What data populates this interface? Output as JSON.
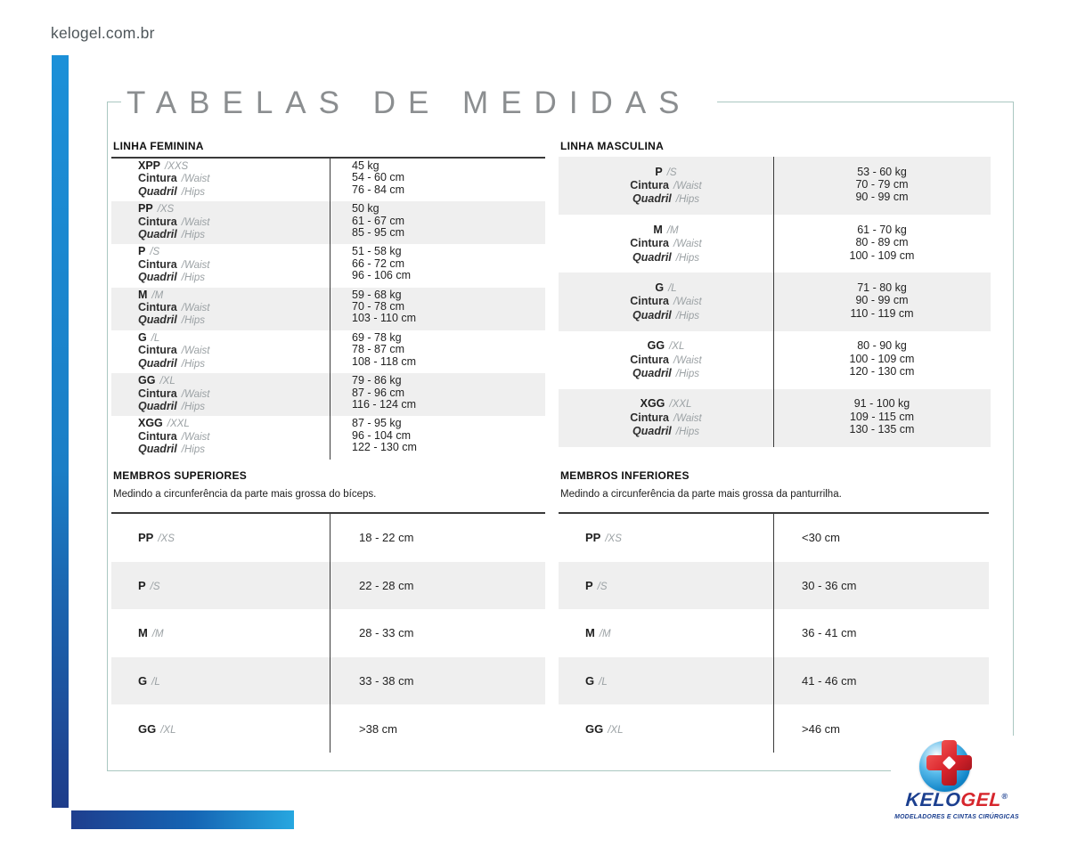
{
  "header": {
    "site_url": "kelogel.com.br"
  },
  "page_title": "TABELAS DE MEDIDAS",
  "labels": {
    "waist": "Cintura",
    "waist_alt": "/Waist",
    "hips": "Quadril",
    "hips_alt": "/Hips"
  },
  "linha_feminina": {
    "title": "LINHA FEMININA",
    "rows": [
      {
        "size": "XPP",
        "size_alt": "/XXS",
        "weight": "45 kg",
        "waist": "54 - 60 cm",
        "hips": "76 - 84 cm"
      },
      {
        "size": "PP",
        "size_alt": "/XS",
        "weight": "50 kg",
        "waist": "61 - 67 cm",
        "hips": "85 - 95 cm"
      },
      {
        "size": "P",
        "size_alt": "/S",
        "weight": "51 - 58 kg",
        "waist": "66 - 72 cm",
        "hips": "96 - 106 cm"
      },
      {
        "size": "M",
        "size_alt": "/M",
        "weight": "59 - 68 kg",
        "waist": "70 - 78 cm",
        "hips": "103 - 110 cm"
      },
      {
        "size": "G",
        "size_alt": "/L",
        "weight": "69 - 78 kg",
        "waist": "78 - 87 cm",
        "hips": "108 - 118 cm"
      },
      {
        "size": "GG",
        "size_alt": "/XL",
        "weight": "79 - 86 kg",
        "waist": "87 - 96 cm",
        "hips": "116 - 124 cm"
      },
      {
        "size": "XGG",
        "size_alt": "/XXL",
        "weight": "87 - 95 kg",
        "waist": "96 - 104 cm",
        "hips": "122 - 130 cm"
      }
    ]
  },
  "linha_masculina": {
    "title": "LINHA MASCULINA",
    "rows": [
      {
        "size": "P",
        "size_alt": "/S",
        "weight": "53 - 60 kg",
        "waist": "70 - 79 cm",
        "hips": "90 - 99 cm"
      },
      {
        "size": "M",
        "size_alt": "/M",
        "weight": "61 - 70 kg",
        "waist": "80 - 89 cm",
        "hips": "100 - 109 cm"
      },
      {
        "size": "G",
        "size_alt": "/L",
        "weight": "71 - 80 kg",
        "waist": "90 - 99 cm",
        "hips": "110 - 119 cm"
      },
      {
        "size": "GG",
        "size_alt": "/XL",
        "weight": "80 - 90 kg",
        "waist": "100 - 109 cm",
        "hips": "120 - 130 cm"
      },
      {
        "size": "XGG",
        "size_alt": "/XXL",
        "weight": "91 - 100 kg",
        "waist": "109 - 115 cm",
        "hips": "130 - 135 cm"
      }
    ]
  },
  "membros_superiores": {
    "title": "MEMBROS SUPERIORES",
    "subtitle": "Medindo a circunferência da parte mais grossa do bíceps.",
    "rows": [
      {
        "size": "PP",
        "size_alt": "/XS",
        "value": "18 - 22 cm"
      },
      {
        "size": "P",
        "size_alt": "/S",
        "value": "22 - 28 cm"
      },
      {
        "size": "M",
        "size_alt": "/M",
        "value": "28 - 33 cm"
      },
      {
        "size": "G",
        "size_alt": "/L",
        "value": "33 - 38 cm"
      },
      {
        "size": "GG",
        "size_alt": "/XL",
        "value": ">38 cm"
      }
    ]
  },
  "membros_inferiores": {
    "title": "MEMBROS INFERIORES",
    "subtitle": "Medindo a circunferência da parte mais grossa da panturrilha.",
    "rows": [
      {
        "size": "PP",
        "size_alt": "/XS",
        "value": "<30 cm"
      },
      {
        "size": "P",
        "size_alt": "/S",
        "value": "30 - 36 cm"
      },
      {
        "size": "M",
        "size_alt": "/M",
        "value": "36 - 41 cm"
      },
      {
        "size": "G",
        "size_alt": "/L",
        "value": "41 - 46 cm"
      },
      {
        "size": "GG",
        "size_alt": "/XL",
        "value": ">46 cm"
      }
    ]
  },
  "logo": {
    "brand_primary": "KELO",
    "brand_secondary": "GEL",
    "registered": "®",
    "tagline": "MODELADORES E CINTAS CIRÚRGICAS"
  },
  "colors": {
    "accent_blue": "#1c90d8",
    "navy": "#1e3e8e",
    "light_blue": "#27a7e0",
    "row_alt_bg": "#efefef",
    "box_border": "#aac7c1",
    "brand_navy": "#1b3f8f",
    "brand_red": "#d6252c",
    "title_gray": "#8b8e90"
  }
}
